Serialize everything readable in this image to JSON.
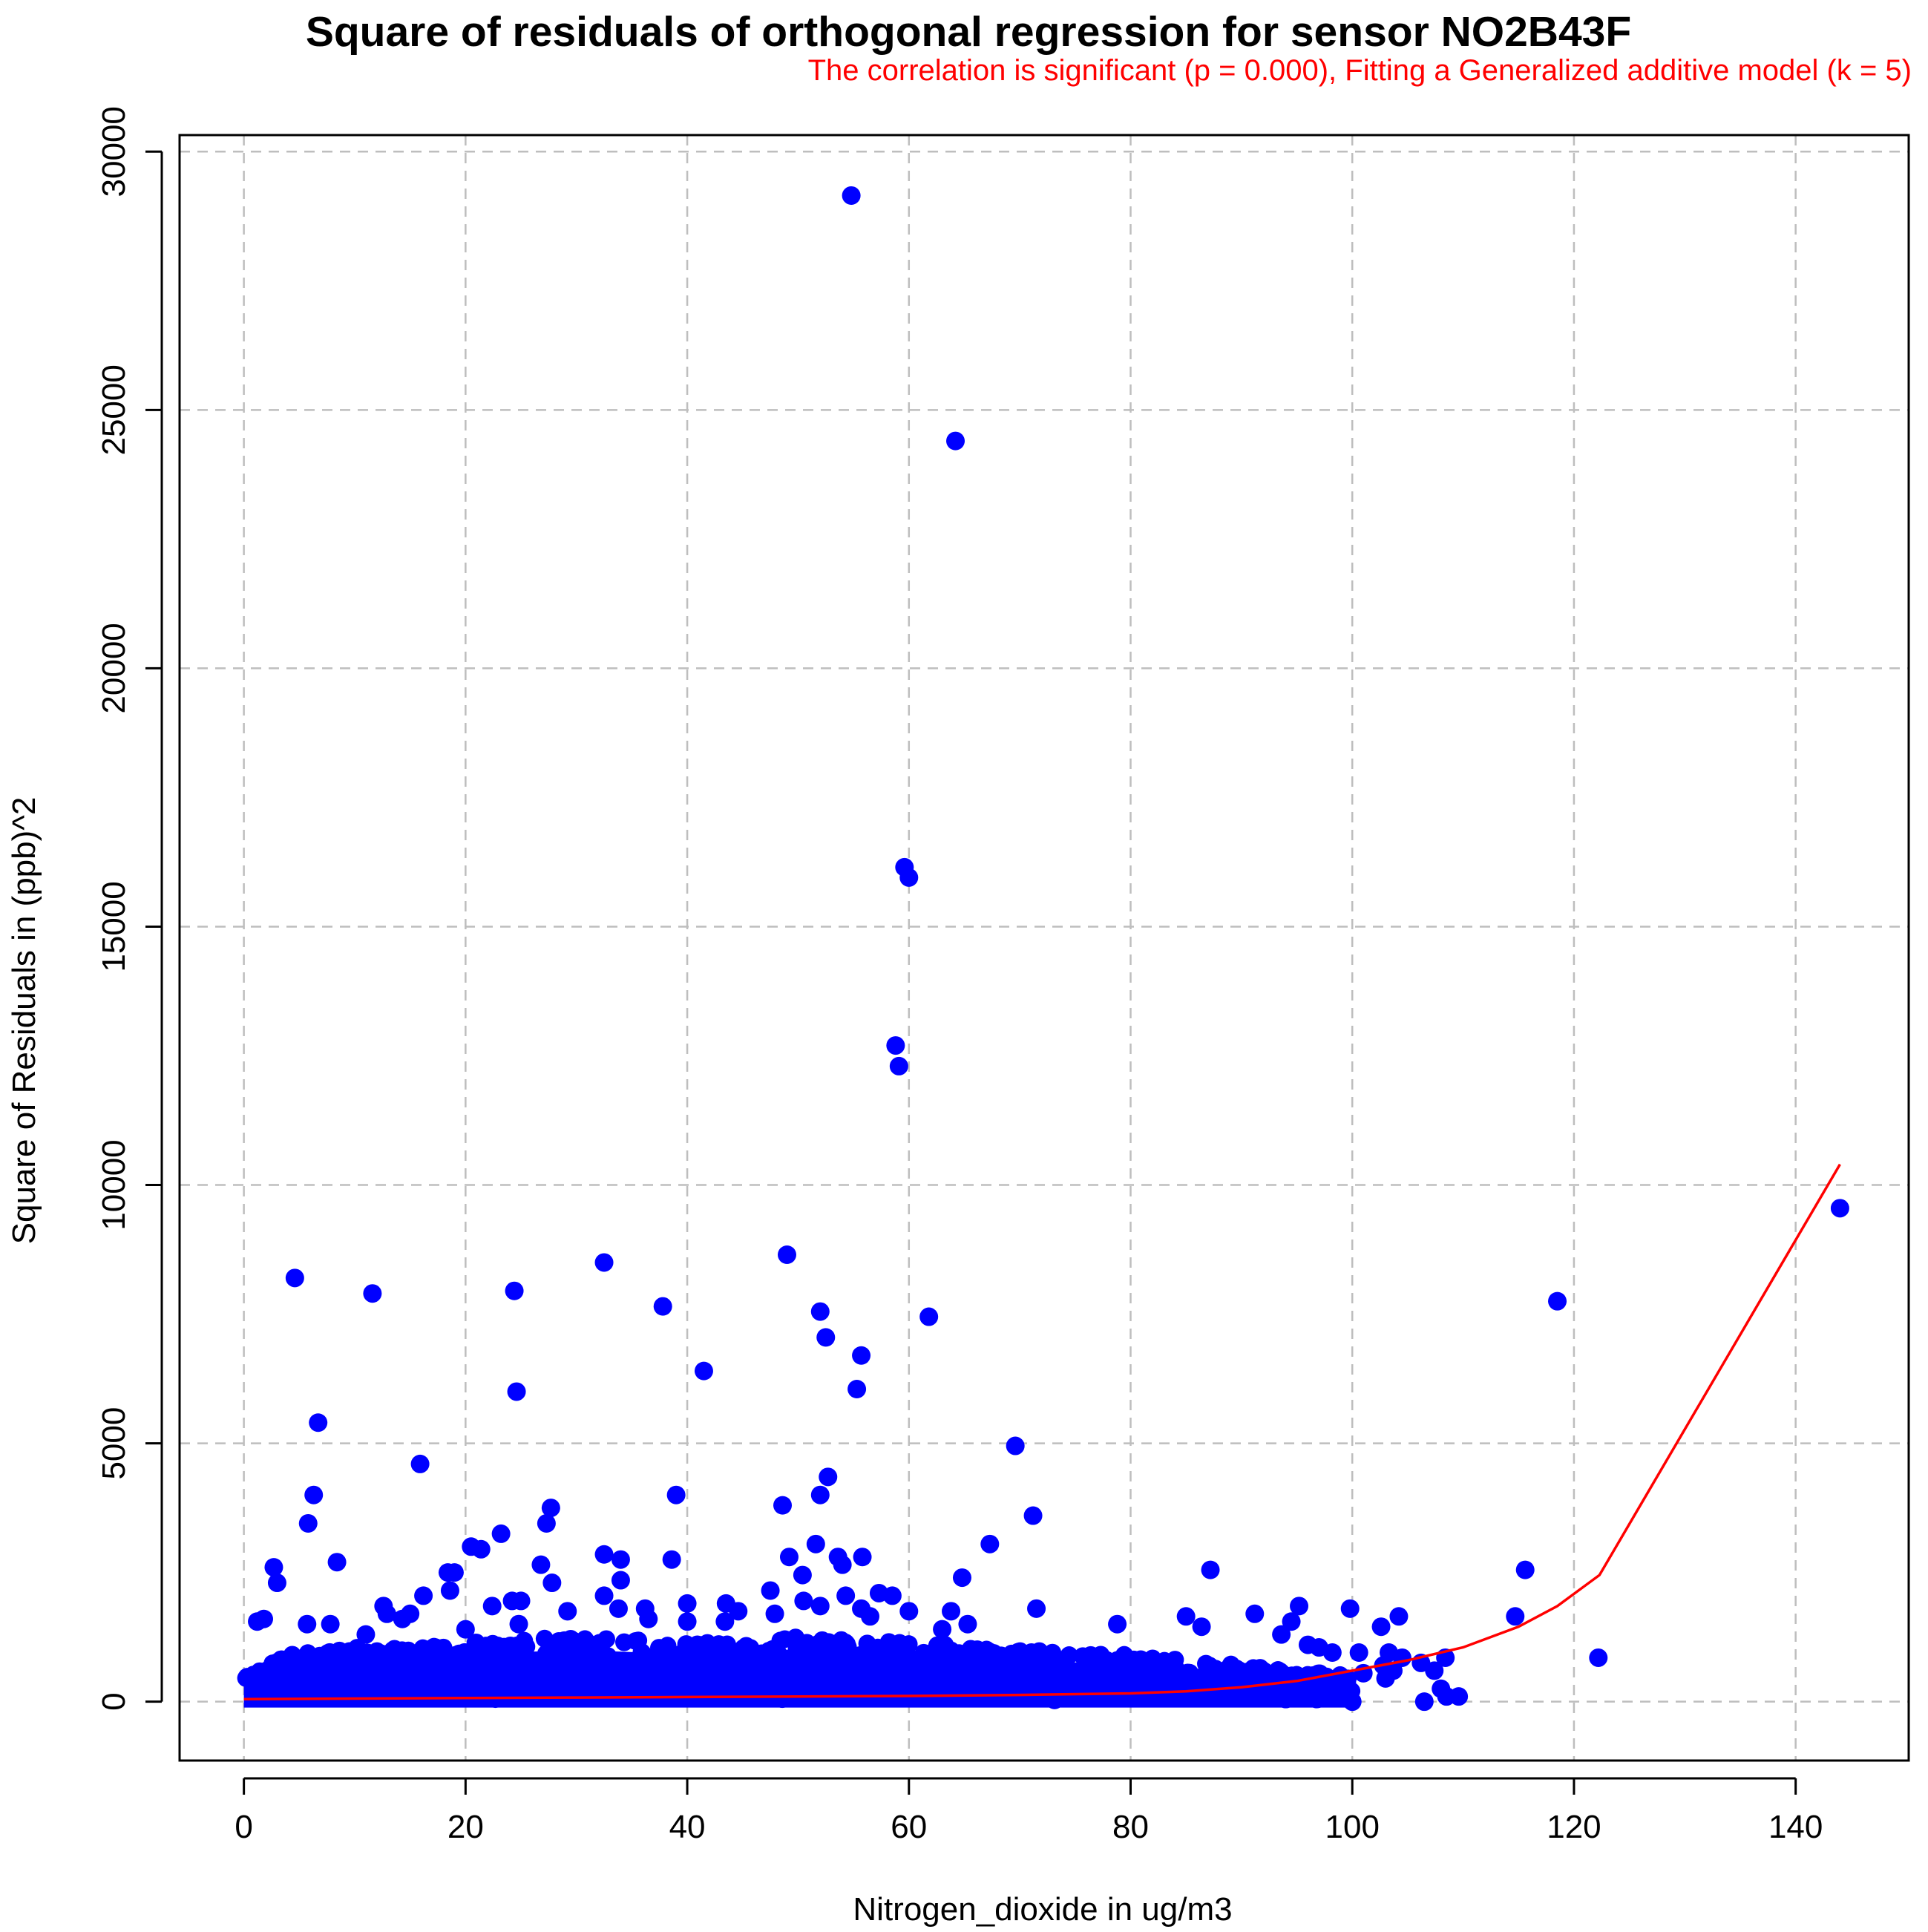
{
  "chart_data": {
    "type": "scatter",
    "title": "Square of residuals of orthogonal regression for sensor NO2B43F",
    "subtitle": "The correlation is significant (p = 0.000), Fitting a Generalized additive model (k = 5)",
    "xlabel": "Nitrogen_dioxide in ug/m3",
    "ylabel": "Square of Residuals in (ppb)^2",
    "xlim": [
      -5.8,
      150.2
    ],
    "ylim": [
      -1140,
      30320
    ],
    "xticks": [
      0,
      20,
      40,
      60,
      80,
      100,
      120,
      140
    ],
    "yticks": [
      0,
      5000,
      10000,
      15000,
      20000,
      25000,
      30000
    ],
    "xtick_labels": [
      "0",
      "20",
      "40",
      "60",
      "80",
      "100",
      "120",
      "140"
    ],
    "ytick_labels": [
      "0",
      "5000",
      "10000",
      "15000",
      "20000",
      "25000",
      "30000"
    ],
    "grid": true,
    "legend": "none",
    "point_color": "#0000ff",
    "fit_color": "#ff0000",
    "dense_band": {
      "description_values": "cloud of many points from x 0 to 100, y mostly 0 to 1000",
      "x_range": [
        0,
        100
      ],
      "y_profile": [
        [
          0,
          650
        ],
        [
          5,
          950
        ],
        [
          10,
          1050
        ],
        [
          20,
          1150
        ],
        [
          30,
          1250
        ],
        [
          40,
          1150
        ],
        [
          50,
          1250
        ],
        [
          60,
          1150
        ],
        [
          70,
          1000
        ],
        [
          80,
          900
        ],
        [
          90,
          700
        ],
        [
          100,
          500
        ]
      ]
    },
    "points": [
      [
        54.8,
        29150
      ],
      [
        64.2,
        24400
      ],
      [
        59.6,
        16150
      ],
      [
        60.0,
        15950
      ],
      [
        58.8,
        12700
      ],
      [
        59.1,
        12300
      ],
      [
        144.0,
        9550
      ],
      [
        49.0,
        8650
      ],
      [
        32.5,
        8500
      ],
      [
        4.6,
        8200
      ],
      [
        11.6,
        7900
      ],
      [
        24.4,
        7950
      ],
      [
        118.5,
        7750
      ],
      [
        37.8,
        7650
      ],
      [
        52.0,
        7550
      ],
      [
        61.8,
        7450
      ],
      [
        52.5,
        7050
      ],
      [
        55.7,
        6700
      ],
      [
        41.5,
        6400
      ],
      [
        24.6,
        6000
      ],
      [
        55.3,
        6050
      ],
      [
        6.7,
        5400
      ],
      [
        69.6,
        4950
      ],
      [
        15.9,
        4600
      ],
      [
        52.7,
        4350
      ],
      [
        6.3,
        4000
      ],
      [
        39.0,
        4000
      ],
      [
        52.0,
        4000
      ],
      [
        48.6,
        3800
      ],
      [
        27.7,
        3750
      ],
      [
        71.2,
        3600
      ],
      [
        5.8,
        3450
      ],
      [
        27.3,
        3450
      ],
      [
        23.2,
        3250
      ],
      [
        67.3,
        3050
      ],
      [
        20.5,
        3000
      ],
      [
        21.4,
        2950
      ],
      [
        51.6,
        3050
      ],
      [
        32.5,
        2850
      ],
      [
        34.0,
        2750
      ],
      [
        38.6,
        2750
      ],
      [
        49.2,
        2800
      ],
      [
        53.6,
        2800
      ],
      [
        55.8,
        2800
      ],
      [
        8.4,
        2700
      ],
      [
        26.8,
        2650
      ],
      [
        2.7,
        2600
      ],
      [
        54.0,
        2650
      ],
      [
        18.4,
        2500
      ],
      [
        19.0,
        2500
      ],
      [
        87.2,
        2550
      ],
      [
        115.6,
        2550
      ],
      [
        3.0,
        2300
      ],
      [
        27.8,
        2300
      ],
      [
        64.8,
        2400
      ],
      [
        50.4,
        2450
      ],
      [
        34.0,
        2350
      ],
      [
        47.5,
        2150
      ],
      [
        16.2,
        2050
      ],
      [
        18.6,
        2150
      ],
      [
        57.3,
        2100
      ],
      [
        58.5,
        2050
      ],
      [
        32.5,
        2050
      ],
      [
        40.0,
        1900
      ],
      [
        43.5,
        1900
      ],
      [
        54.3,
        2050
      ],
      [
        12.6,
        1850
      ],
      [
        22.4,
        1850
      ],
      [
        24.2,
        1950
      ],
      [
        25.0,
        1950
      ],
      [
        29.2,
        1750
      ],
      [
        33.8,
        1800
      ],
      [
        36.2,
        1800
      ],
      [
        44.6,
        1750
      ],
      [
        47.9,
        1700
      ],
      [
        50.5,
        1950
      ],
      [
        52.0,
        1850
      ],
      [
        55.7,
        1800
      ],
      [
        60.0,
        1750
      ],
      [
        63.8,
        1750
      ],
      [
        71.5,
        1800
      ],
      [
        95.2,
        1850
      ],
      [
        99.8,
        1800
      ],
      [
        12.9,
        1700
      ],
      [
        14.3,
        1600
      ],
      [
        15.0,
        1700
      ],
      [
        1.2,
        1550
      ],
      [
        1.8,
        1600
      ],
      [
        5.7,
        1500
      ],
      [
        7.8,
        1500
      ],
      [
        11.0,
        1300
      ],
      [
        20.0,
        1400
      ],
      [
        24.8,
        1500
      ],
      [
        36.5,
        1600
      ],
      [
        40.0,
        1550
      ],
      [
        43.4,
        1550
      ],
      [
        56.5,
        1650
      ],
      [
        63.0,
        1400
      ],
      [
        65.3,
        1500
      ],
      [
        78.8,
        1500
      ],
      [
        85.0,
        1650
      ],
      [
        86.4,
        1450
      ],
      [
        91.2,
        1700
      ],
      [
        94.5,
        1550
      ],
      [
        102.6,
        1450
      ],
      [
        104.2,
        1650
      ],
      [
        114.7,
        1650
      ],
      [
        93.6,
        1300
      ],
      [
        96.0,
        1100
      ],
      [
        97.0,
        1050
      ],
      [
        98.2,
        950
      ],
      [
        100.6,
        950
      ],
      [
        102.8,
        700
      ],
      [
        103.3,
        950
      ],
      [
        104.5,
        850
      ],
      [
        106.2,
        750
      ],
      [
        107.4,
        600
      ],
      [
        108.4,
        850
      ],
      [
        103.7,
        600
      ],
      [
        103.0,
        450
      ],
      [
        101.0,
        550
      ],
      [
        99.5,
        400
      ],
      [
        97.8,
        300
      ],
      [
        96.5,
        200
      ],
      [
        95.0,
        150
      ],
      [
        108.0,
        250
      ],
      [
        109.6,
        100
      ],
      [
        108.5,
        100
      ],
      [
        106.5,
        0
      ],
      [
        122.2,
        850
      ],
      [
        100.0,
        0
      ],
      [
        96.8,
        50
      ],
      [
        98.5,
        100
      ],
      [
        94.0,
        50
      ],
      [
        92.0,
        200
      ]
    ],
    "fit_line": [
      [
        0,
        50
      ],
      [
        10,
        60
      ],
      [
        20,
        70
      ],
      [
        30,
        80
      ],
      [
        40,
        90
      ],
      [
        50,
        100
      ],
      [
        60,
        110
      ],
      [
        70,
        130
      ],
      [
        80,
        160
      ],
      [
        85,
        200
      ],
      [
        90,
        280
      ],
      [
        95,
        400
      ],
      [
        100,
        600
      ],
      [
        105,
        800
      ],
      [
        110,
        1050
      ],
      [
        115,
        1450
      ],
      [
        118.5,
        1850
      ],
      [
        122.3,
        2450
      ],
      [
        144.0,
        10400
      ]
    ]
  }
}
